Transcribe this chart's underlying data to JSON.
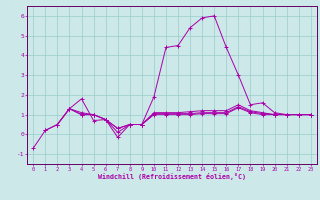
{
  "xlabel": "Windchill (Refroidissement éolien,°C)",
  "bg_color": "#cce8e8",
  "line_color": "#aa00aa",
  "grid_color": "#99cccc",
  "spine_color": "#660066",
  "xlim": [
    -0.5,
    23.5
  ],
  "ylim": [
    -1.5,
    6.5
  ],
  "xticks": [
    0,
    1,
    2,
    3,
    4,
    5,
    6,
    7,
    8,
    9,
    10,
    11,
    12,
    13,
    14,
    15,
    16,
    17,
    18,
    19,
    20,
    21,
    22,
    23
  ],
  "yticks": [
    -1,
    0,
    1,
    2,
    3,
    4,
    5,
    6
  ],
  "series": [
    [
      null,
      0.2,
      0.5,
      1.3,
      1.1,
      1.0,
      0.75,
      0.1,
      0.5,
      0.5,
      1.1,
      1.1,
      1.1,
      1.15,
      1.2,
      1.2,
      1.2,
      1.5,
      1.2,
      1.1,
      1.0,
      1.0,
      1.0,
      1.0
    ],
    [
      -0.7,
      0.2,
      0.5,
      1.3,
      1.8,
      0.7,
      0.75,
      -0.15,
      0.5,
      0.5,
      1.9,
      4.4,
      4.5,
      5.4,
      5.9,
      6.0,
      4.4,
      3.0,
      1.5,
      1.6,
      1.1,
      1.0,
      1.0,
      1.0
    ],
    [
      null,
      null,
      0.5,
      1.3,
      1.0,
      1.0,
      0.75,
      0.3,
      0.5,
      0.5,
      1.05,
      1.05,
      1.05,
      1.05,
      1.1,
      1.1,
      1.1,
      1.4,
      1.15,
      1.05,
      1.0,
      1.0,
      1.0,
      1.0
    ],
    [
      null,
      null,
      null,
      1.3,
      1.0,
      1.0,
      0.75,
      0.3,
      0.5,
      0.5,
      1.0,
      1.0,
      1.0,
      1.0,
      1.05,
      1.05,
      1.05,
      1.35,
      1.1,
      1.0,
      1.0,
      1.0,
      1.0,
      1.0
    ]
  ]
}
